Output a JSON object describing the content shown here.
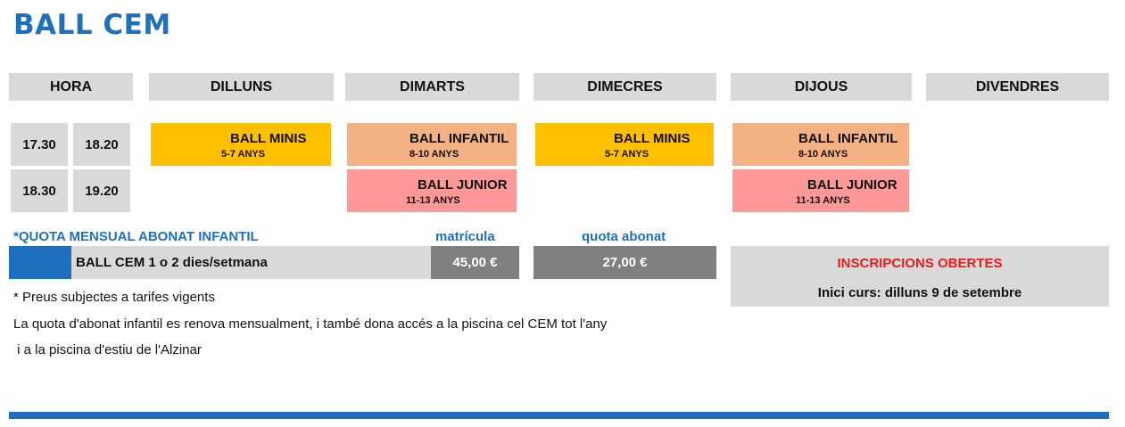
{
  "title": "BALL CEM",
  "headers": {
    "hora": "HORA",
    "dilluns": "DILLUNS",
    "dimarts": "DIMARTS",
    "dimecres": "DIMECRES",
    "dijous": "DIJOUS",
    "divendres": "DIVENDRES"
  },
  "times": {
    "row1_start": "17.30",
    "row1_end": "18.20",
    "row2_start": "18.30",
    "row2_end": "19.20"
  },
  "classes": {
    "mon_1": {
      "name": "BALL MINIS",
      "age": "5-7 ANYS"
    },
    "tue_1": {
      "name": "BALL INFANTIL",
      "age": "8-10 ANYS"
    },
    "tue_2": {
      "name": "BALL JUNIOR",
      "age": "11-13 ANYS"
    },
    "wed_1": {
      "name": "BALL MINIS",
      "age": "5-7 ANYS"
    },
    "thu_1": {
      "name": "BALL INFANTIL",
      "age": "8-10 ANYS"
    },
    "thu_2": {
      "name": "BALL JUNIOR",
      "age": "11-13 ANYS"
    }
  },
  "colors": {
    "brand_blue": "#1f6fbf",
    "minis": "#ffc000",
    "infantil": "#f4b183",
    "junior": "#ff9999",
    "alert_red": "#e81c1c"
  },
  "fees": {
    "section_label": "*QUOTA MENSUAL ABONAT INFANTIL",
    "matricula_label": "matrícula",
    "quota_label": "quota abonat",
    "row_label": "BALL CEM 1 o 2 dies/setmana",
    "matricula_value": "45,00 €",
    "quota_value": "27,00 €"
  },
  "notes": {
    "line1": "* Preus subjectes a tarifes vigents",
    "line2": "La quota d'abonat infantil es renova mensualment, i també dona accés a la piscina cel CEM tot l'any",
    "line3": " i a la piscina d'estiu de l'Alzinar"
  },
  "inscriptions": {
    "title": "INSCRIPCIONS OBERTES",
    "start": "Inici curs: dilluns 9 de setembre"
  }
}
